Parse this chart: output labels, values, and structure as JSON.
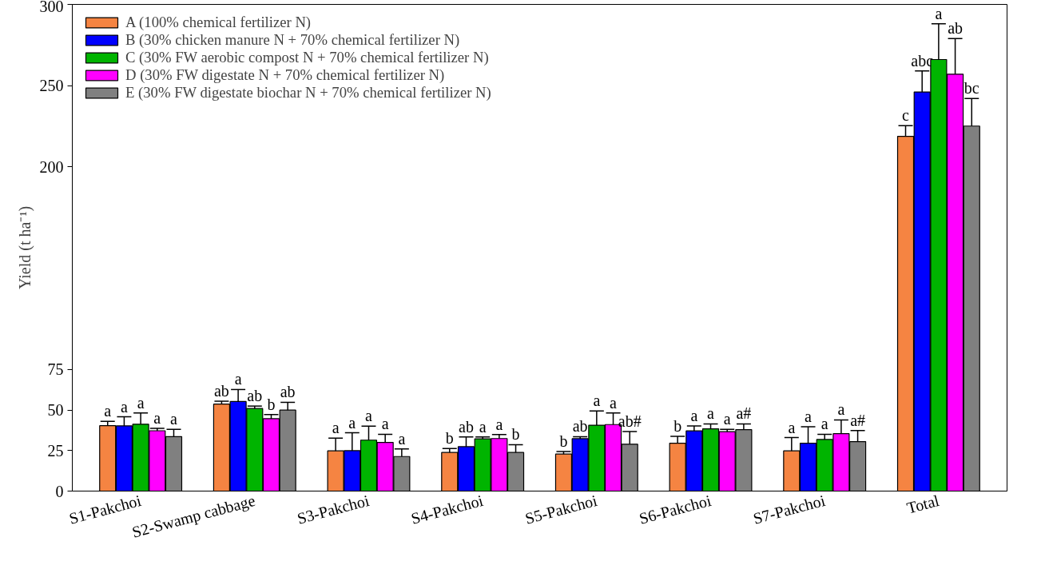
{
  "chart_data": {
    "type": "bar",
    "categories": [
      "S1-Pakchoi",
      "S2-Swamp cabbage",
      "S3-Pakchoi",
      "S4-Pakchoi",
      "S5-Pakchoi",
      "S6-Pakchoi",
      "S7-Pakchoi",
      "Total"
    ],
    "ylim": [
      0,
      300
    ],
    "yticks": [
      0,
      25,
      50,
      75,
      200,
      250,
      300
    ],
    "ylabel": "Yield (t ha⁻¹)",
    "grid": false,
    "legend": "top left",
    "series": [
      {
        "name": "A (100% chemical fertilizer N)",
        "color": "#f58442",
        "values": [
          40.3,
          53.6,
          24.8,
          23.8,
          22.8,
          29.5,
          24.8,
          218.7
        ],
        "errors": [
          2.7,
          1.8,
          7.8,
          2.4,
          1.6,
          4.3,
          8.2,
          6.5
        ],
        "value_labels": [
          "a",
          "ab",
          "a",
          "b",
          "b",
          "b",
          "a",
          "c"
        ]
      },
      {
        "name": "B (30% chicken manure N + 70% chemical fertilizer N)",
        "color": "#0000ff",
        "values": [
          40.2,
          55.2,
          24.9,
          27.4,
          32.3,
          37.1,
          29.5,
          246
        ],
        "errors": [
          5.6,
          7.4,
          11,
          6,
          1.2,
          3,
          10.1,
          13
        ],
        "value_labels": [
          "a",
          "a",
          "a",
          "ab",
          "ab",
          "a",
          "a",
          "abc"
        ]
      },
      {
        "name": "C (30% FW aerobic compost N + 70% chemical fertilizer N)",
        "color": "#00b400",
        "values": [
          41.2,
          50.9,
          31.4,
          32.2,
          40.6,
          38.4,
          31.8,
          266
        ],
        "errors": [
          7,
          1.5,
          8.6,
          1.2,
          8.8,
          3,
          3.2,
          22
        ],
        "value_labels": [
          "a",
          "ab",
          "a",
          "a",
          "a",
          "a",
          "a",
          "a"
        ]
      },
      {
        "name": "D (30% FW digestate N + 70% chemical fertilizer N)",
        "color": "#ff00ff",
        "values": [
          37.2,
          44.6,
          30,
          32.4,
          41,
          36.6,
          35.4,
          257
        ],
        "errors": [
          1.5,
          2.6,
          5,
          2.5,
          7.2,
          1.5,
          8.5,
          22
        ],
        "value_labels": [
          "a",
          "b",
          "a",
          "a",
          "a",
          "a",
          "a",
          "ab"
        ]
      },
      {
        "name": "E (30% FW digestate biochar N + 70% chemical fertilizer N)",
        "color": "#808080",
        "values": [
          33.6,
          49.9,
          21.3,
          23.8,
          28.9,
          37.9,
          30.5,
          225
        ],
        "errors": [
          4.5,
          4.8,
          4.7,
          4.8,
          7.8,
          3.5,
          6.8,
          17
        ],
        "value_labels": [
          "a",
          "ab",
          "a",
          "b",
          "ab#",
          "a#",
          "a#",
          "bc"
        ]
      }
    ]
  }
}
